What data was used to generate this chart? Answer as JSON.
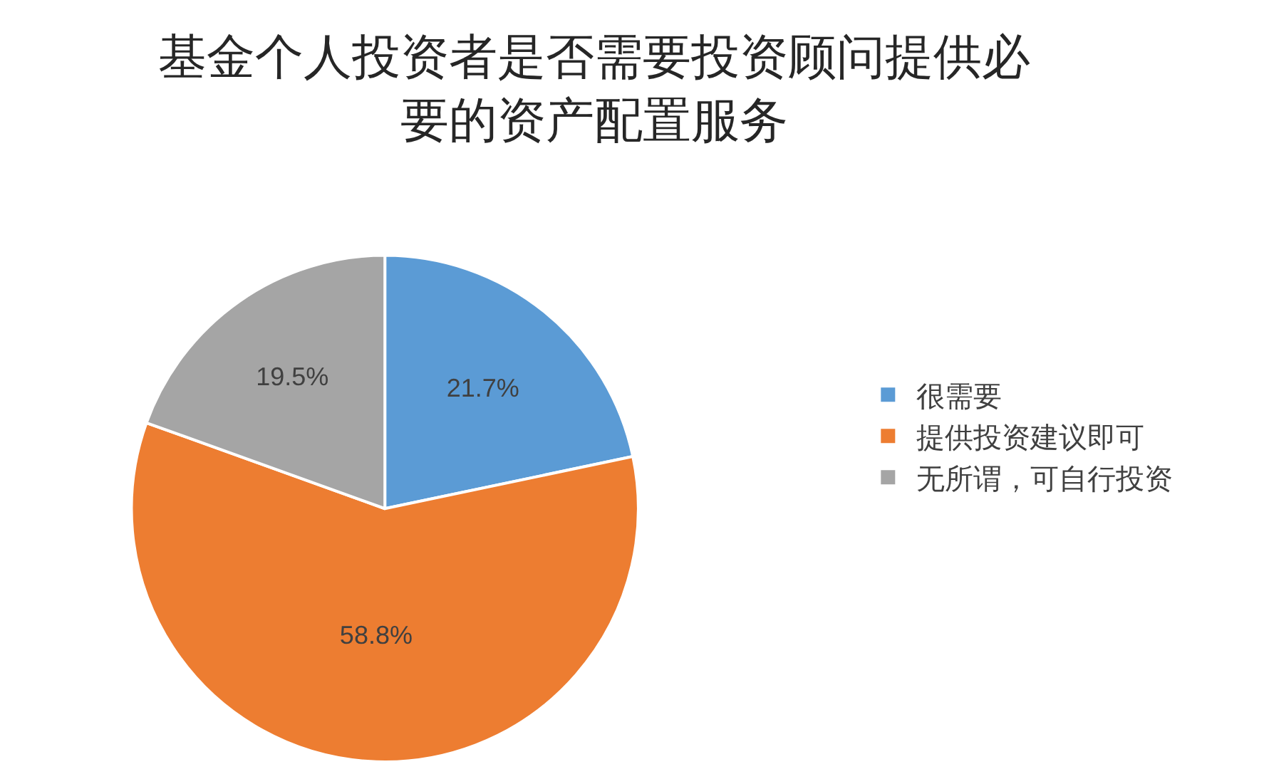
{
  "chart_data": {
    "type": "pie",
    "title": "基金个人投资者是否需要投资顾问提供必要的资产配置服务",
    "categories": [
      "很需要",
      "提供投资建议即可",
      "无所谓，可自行投资"
    ],
    "values": [
      21.7,
      58.8,
      19.5
    ],
    "value_labels": [
      "21.7%",
      "58.8%",
      "19.5%"
    ],
    "colors": [
      "#5b9bd5",
      "#ed7d31",
      "#a5a5a5"
    ],
    "legend": "right"
  }
}
